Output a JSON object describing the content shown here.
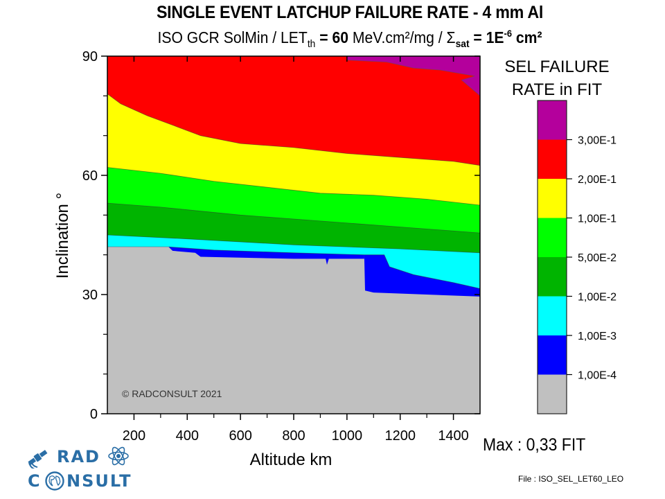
{
  "header": {
    "title": "SINGLE EVENT LATCHUP FAILURE RATE - 4 mm Al",
    "subtitle_prefix": "ISO GCR SolMin / LET",
    "subtitle_let_sub": "th",
    "subtitle_eq1": " = ",
    "subtitle_let_value": "60",
    "subtitle_let_unit": " MeV.cm²/mg / ",
    "subtitle_sigma": "Σ",
    "subtitle_sigma_sub": "sat",
    "subtitle_sigma_eq": " = 1E",
    "subtitle_sigma_exp": "-6",
    "subtitle_sigma_unit": " cm²"
  },
  "annotations": {
    "copyright": "© RADCONSULT 2021",
    "max": "Max : 0,33 FIT",
    "file": "File : ISO_SEL_LET60_LEO"
  },
  "logo": {
    "line1": "RAD",
    "line2_prefix": "C",
    "line2_suffix": "NSULT",
    "satellite_icon": "satellite-icon",
    "atom_icon": "atom-icon",
    "globe_icon": "globe-icon"
  },
  "chart_data": {
    "type": "heatmap",
    "subtype": "filled-contour",
    "title": "SINGLE EVENT LATCHUP FAILURE RATE - 4 mm Al",
    "subtitle": "ISO GCR SolMin / LETth = 60 MeV.cm²/mg / Σsat = 1E-6 cm²",
    "xlabel": "Altitude km",
    "ylabel": "Inclination °",
    "xlim": [
      100,
      1500
    ],
    "ylim": [
      0,
      90
    ],
    "xticks": [
      200,
      400,
      600,
      800,
      1000,
      1200,
      1400
    ],
    "xtick_labels": [
      "200",
      "400",
      "600",
      "800",
      "1000",
      "1200",
      "1400"
    ],
    "yticks": [
      0,
      30,
      60,
      90
    ],
    "ytick_labels": [
      "0",
      "30",
      "60",
      "90"
    ],
    "y_minor_ticks": [
      10,
      20,
      40,
      50,
      70,
      80
    ],
    "x_minor_ticks": [
      300,
      500,
      700,
      900,
      1100,
      1300
    ],
    "grid": false,
    "colorbar": {
      "title_line1": "SEL FAILURE",
      "title_line2": "RATE in FIT",
      "position": "right",
      "levels": [
        0.0001,
        0.001,
        0.01,
        0.05,
        0.1,
        0.2,
        0.3
      ],
      "level_labels": [
        "1,00E-4",
        "1,00E-3",
        "1,00E-2",
        "5,00E-2",
        "1,00E-1",
        "2,00E-1",
        "3,00E-1"
      ],
      "band_colors": [
        "#c0c0c0",
        "#0000ff",
        "#00ffff",
        "#00b400",
        "#00ff00",
        "#ffff00",
        "#ff0000",
        "#b4009c"
      ]
    },
    "contours": [
      {
        "level": "1,00E-4",
        "color": "#c0c0c0",
        "note": "region below this boundary is < 1E-4 (grey)",
        "boundary": [
          [
            100,
            42
          ],
          [
            330,
            42
          ],
          [
            345,
            41
          ],
          [
            430,
            40.5
          ],
          [
            450,
            39.5
          ],
          [
            800,
            39
          ],
          [
            920,
            39
          ],
          [
            925,
            37.5
          ],
          [
            932,
            39
          ],
          [
            1065,
            39
          ],
          [
            1065,
            40
          ],
          [
            1068,
            31
          ],
          [
            1100,
            30.5
          ],
          [
            1300,
            30
          ],
          [
            1500,
            29.5
          ]
        ]
      },
      {
        "level": "1,00E-3",
        "color": "#0000ff",
        "boundary": [
          [
            100,
            42
          ],
          [
            330,
            42
          ],
          [
            500,
            41.2
          ],
          [
            800,
            40.5
          ],
          [
            1065,
            40
          ],
          [
            1140,
            40
          ],
          [
            1160,
            37
          ],
          [
            1250,
            35
          ],
          [
            1400,
            33
          ],
          [
            1500,
            31.5
          ]
        ]
      },
      {
        "level": "1,00E-2",
        "color": "#00ffff",
        "boundary": [
          [
            100,
            45
          ],
          [
            400,
            44
          ],
          [
            800,
            42.5
          ],
          [
            1200,
            41.5
          ],
          [
            1500,
            40.5
          ]
        ]
      },
      {
        "level": "5,00E-2",
        "color": "#00b400",
        "boundary": [
          [
            100,
            53
          ],
          [
            300,
            52
          ],
          [
            600,
            50
          ],
          [
            900,
            48.5
          ],
          [
            1200,
            47
          ],
          [
            1500,
            45.5
          ]
        ]
      },
      {
        "level": "1,00E-1",
        "color": "#00ff00",
        "boundary": [
          [
            100,
            62
          ],
          [
            300,
            60.5
          ],
          [
            500,
            58.5
          ],
          [
            700,
            57
          ],
          [
            900,
            55.5
          ],
          [
            1100,
            55
          ],
          [
            1300,
            54
          ],
          [
            1500,
            52.5
          ]
        ]
      },
      {
        "level": "2,00E-1",
        "color": "#ffff00",
        "boundary": [
          [
            100,
            80.5
          ],
          [
            150,
            78
          ],
          [
            250,
            75
          ],
          [
            350,
            72.5
          ],
          [
            450,
            70
          ],
          [
            600,
            68
          ],
          [
            800,
            67
          ],
          [
            1000,
            65.5
          ],
          [
            1200,
            64.5
          ],
          [
            1400,
            63.5
          ],
          [
            1500,
            62.5
          ]
        ]
      },
      {
        "level": "3,00E-1",
        "color": "#b4009c",
        "boundary": [
          [
            1000,
            89
          ],
          [
            1150,
            88.5
          ],
          [
            1250,
            87
          ],
          [
            1350,
            86.5
          ],
          [
            1480,
            85
          ],
          [
            1430,
            84
          ],
          [
            1500,
            80
          ]
        ]
      }
    ],
    "max_value_fit": 0.33
  }
}
